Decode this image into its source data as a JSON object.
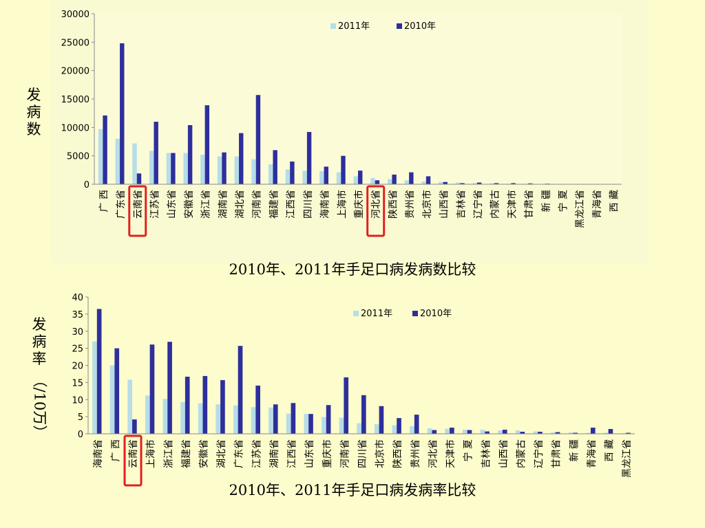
{
  "colors": {
    "y2011": "#b6dde8",
    "y2010": "#2e2f9c",
    "highlight": "#e02020",
    "background": "#fcfccc",
    "panel": "#fafad2"
  },
  "charts": [
    {
      "caption": "2010年、2011年手足口病发病数比较",
      "ylabel_chars": [
        "发",
        "病",
        "数"
      ]
    },
    {
      "caption": "2010年、2011年手足口病发病率比较",
      "ylabel_chars": [
        "发",
        "病",
        "率"
      ],
      "ylabel_rotated": "（/10万）"
    }
  ],
  "chart_data": [
    {
      "type": "bar",
      "title": "2010年、2011年手足口病发病数比较",
      "ylabel": "发病数",
      "ylim": [
        0,
        30000
      ],
      "yticks": [
        0,
        5000,
        10000,
        15000,
        20000,
        25000,
        30000
      ],
      "legend_position": "top-right",
      "categories": [
        "广 西",
        "广东省",
        "云南省",
        "江苏省",
        "山东省",
        "安徽省",
        "浙江省",
        "湖南省",
        "湖北省",
        "河南省",
        "福建省",
        "江西省",
        "四川省",
        "海南省",
        "上海市",
        "重庆市",
        "河北省",
        "陕西省",
        "贵州省",
        "北京市",
        "山西省",
        "吉林省",
        "辽宁省",
        "内蒙古",
        "天津市",
        "甘肃省",
        "新 疆",
        "宁 夏",
        "黑龙江省",
        "青海省",
        "西 藏"
      ],
      "highlighted": [
        "云南省",
        "河北省"
      ],
      "series": [
        {
          "name": "2011年",
          "values": [
            9700,
            8000,
            7200,
            5900,
            5500,
            5500,
            5200,
            4900,
            4900,
            4400,
            3500,
            2600,
            2400,
            2300,
            2100,
            1400,
            1100,
            900,
            700,
            500,
            400,
            300,
            200,
            150,
            100,
            100,
            50,
            50,
            30,
            20,
            10
          ]
        },
        {
          "name": "2010年",
          "values": [
            12100,
            24800,
            1900,
            11000,
            5500,
            10400,
            13900,
            5600,
            9000,
            15700,
            6000,
            4000,
            9200,
            3100,
            5000,
            2400,
            700,
            1700,
            2100,
            1400,
            400,
            200,
            300,
            200,
            200,
            150,
            100,
            50,
            50,
            30,
            10
          ]
        }
      ]
    },
    {
      "type": "bar",
      "title": "2010年、2011年手足口病发病率比较",
      "ylabel": "发病率（/10万）",
      "ylim": [
        0,
        40
      ],
      "yticks": [
        0,
        5,
        10,
        15,
        20,
        25,
        30,
        35,
        40
      ],
      "legend_position": "top-right",
      "categories": [
        "海南省",
        "广 西",
        "云南省",
        "上海市",
        "浙江省",
        "福建省",
        "安徽省",
        "湖北省",
        "广东省",
        "江苏省",
        "湖南省",
        "江西省",
        "山东省",
        "重庆市",
        "河南省",
        "四川省",
        "北京市",
        "陕西省",
        "贵州省",
        "河北省",
        "天津市",
        "宁 夏",
        "吉林省",
        "山西省",
        "内蒙古",
        "辽宁省",
        "甘肃省",
        "新 疆",
        "青海省",
        "西 藏",
        "黑龙江省"
      ],
      "highlighted": [
        "云南省"
      ],
      "series": [
        {
          "name": "2011年",
          "values": [
            27,
            20,
            15.8,
            11.2,
            10.2,
            9.3,
            8.9,
            8.6,
            8.3,
            7.8,
            7.7,
            5.9,
            5.8,
            4.9,
            4.7,
            3.1,
            2.8,
            2.5,
            2.2,
            1.6,
            1.5,
            1.2,
            1.2,
            1.0,
            1.0,
            0.7,
            0.4,
            0.4,
            0.3,
            0.3,
            0.2
          ]
        },
        {
          "name": "2010年",
          "values": [
            36.5,
            25,
            4.2,
            26.1,
            26.9,
            16.7,
            16.9,
            15.7,
            25.7,
            14.1,
            8.6,
            9.0,
            5.8,
            8.4,
            16.5,
            11.3,
            8.1,
            4.6,
            5.6,
            1.1,
            1.8,
            1.1,
            0.7,
            1.2,
            0.6,
            0.6,
            0.5,
            0.3,
            1.8,
            1.4,
            0.3
          ]
        }
      ]
    }
  ]
}
